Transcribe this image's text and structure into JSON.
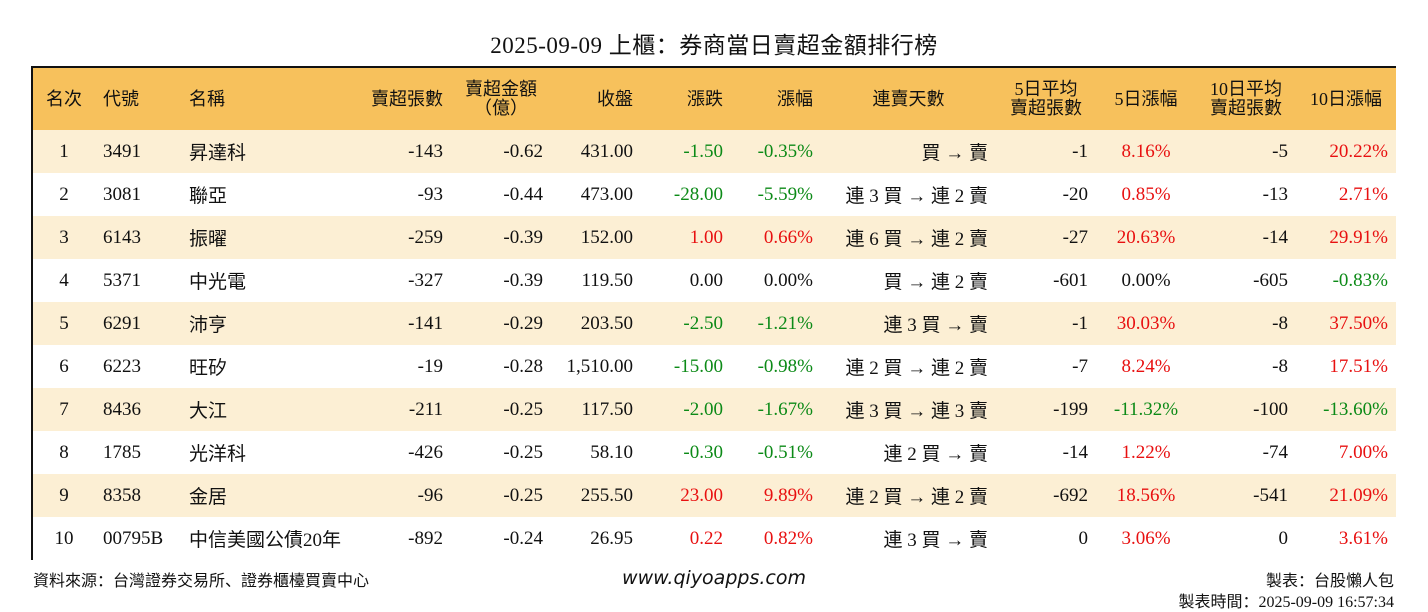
{
  "title": "2025-09-09 上櫃：券商當日賣超金額排行榜",
  "headers": {
    "rank": "名次",
    "code": "代號",
    "name": "名稱",
    "sell_lots": "賣超張數",
    "sell_amount_1": "賣超金額",
    "sell_amount_2": "（億）",
    "close": "收盤",
    "change": "漲跌",
    "pct": "漲幅",
    "streak": "連賣天數",
    "avg5_1": "5日平均",
    "avg5_2": "賣超張數",
    "pct5": "5日漲幅",
    "avg10_1": "10日平均",
    "avg10_2": "賣超張數",
    "pct10": "10日漲幅"
  },
  "rows": [
    {
      "rank": "1",
      "code": "3491",
      "name": "昇達科",
      "sell_lots": "-143",
      "sell_amount": "-0.62",
      "close": "431.00",
      "change": "-1.50",
      "pct": "-0.35%",
      "streak": "買 → 賣",
      "avg5": "-1",
      "pct5": "8.16%",
      "avg10": "-5",
      "pct10": "20.22%"
    },
    {
      "rank": "2",
      "code": "3081",
      "name": "聯亞",
      "sell_lots": "-93",
      "sell_amount": "-0.44",
      "close": "473.00",
      "change": "-28.00",
      "pct": "-5.59%",
      "streak": "連 3 買 → 連 2 賣",
      "avg5": "-20",
      "pct5": "0.85%",
      "avg10": "-13",
      "pct10": "2.71%"
    },
    {
      "rank": "3",
      "code": "6143",
      "name": "振曜",
      "sell_lots": "-259",
      "sell_amount": "-0.39",
      "close": "152.00",
      "change": "1.00",
      "pct": "0.66%",
      "streak": "連 6 買 → 連 2 賣",
      "avg5": "-27",
      "pct5": "20.63%",
      "avg10": "-14",
      "pct10": "29.91%"
    },
    {
      "rank": "4",
      "code": "5371",
      "name": "中光電",
      "sell_lots": "-327",
      "sell_amount": "-0.39",
      "close": "119.50",
      "change": "0.00",
      "pct": "0.00%",
      "streak": "買 → 連 2 賣",
      "avg5": "-601",
      "pct5": "0.00%",
      "avg10": "-605",
      "pct10": "-0.83%"
    },
    {
      "rank": "5",
      "code": "6291",
      "name": "沛亨",
      "sell_lots": "-141",
      "sell_amount": "-0.29",
      "close": "203.50",
      "change": "-2.50",
      "pct": "-1.21%",
      "streak": "連 3 買 → 賣",
      "avg5": "-1",
      "pct5": "30.03%",
      "avg10": "-8",
      "pct10": "37.50%"
    },
    {
      "rank": "6",
      "code": "6223",
      "name": "旺矽",
      "sell_lots": "-19",
      "sell_amount": "-0.28",
      "close": "1,510.00",
      "change": "-15.00",
      "pct": "-0.98%",
      "streak": "連 2 買 → 連 2 賣",
      "avg5": "-7",
      "pct5": "8.24%",
      "avg10": "-8",
      "pct10": "17.51%"
    },
    {
      "rank": "7",
      "code": "8436",
      "name": "大江",
      "sell_lots": "-211",
      "sell_amount": "-0.25",
      "close": "117.50",
      "change": "-2.00",
      "pct": "-1.67%",
      "streak": "連 3 買 → 連 3 賣",
      "avg5": "-199",
      "pct5": "-11.32%",
      "avg10": "-100",
      "pct10": "-13.60%"
    },
    {
      "rank": "8",
      "code": "1785",
      "name": "光洋科",
      "sell_lots": "-426",
      "sell_amount": "-0.25",
      "close": "58.10",
      "change": "-0.30",
      "pct": "-0.51%",
      "streak": "連 2 買 → 賣",
      "avg5": "-14",
      "pct5": "1.22%",
      "avg10": "-74",
      "pct10": "7.00%"
    },
    {
      "rank": "9",
      "code": "8358",
      "name": "金居",
      "sell_lots": "-96",
      "sell_amount": "-0.25",
      "close": "255.50",
      "change": "23.00",
      "pct": "9.89%",
      "streak": "連 2 買 → 連 2 賣",
      "avg5": "-692",
      "pct5": "18.56%",
      "avg10": "-541",
      "pct10": "21.09%"
    },
    {
      "rank": "10",
      "code": "00795B",
      "name": "中信美國公債20年",
      "sell_lots": "-892",
      "sell_amount": "-0.24",
      "close": "26.95",
      "change": "0.22",
      "pct": "0.82%",
      "streak": "連 3 買 → 賣",
      "avg5": "0",
      "pct5": "3.06%",
      "avg10": "0",
      "pct10": "3.61%"
    }
  ],
  "footer": {
    "source": "資料來源：台灣證券交易所、證券櫃檯買賣中心",
    "website": "www.qiyoapps.com",
    "author": "製表：台股懶人包",
    "timestamp": "製表時間：2025-09-09 16:57:34"
  },
  "colors": {
    "header_bg": "#f7c15c",
    "stripe_bg": "#fcefd4",
    "up": "#e81010",
    "down": "#0c8a17"
  }
}
